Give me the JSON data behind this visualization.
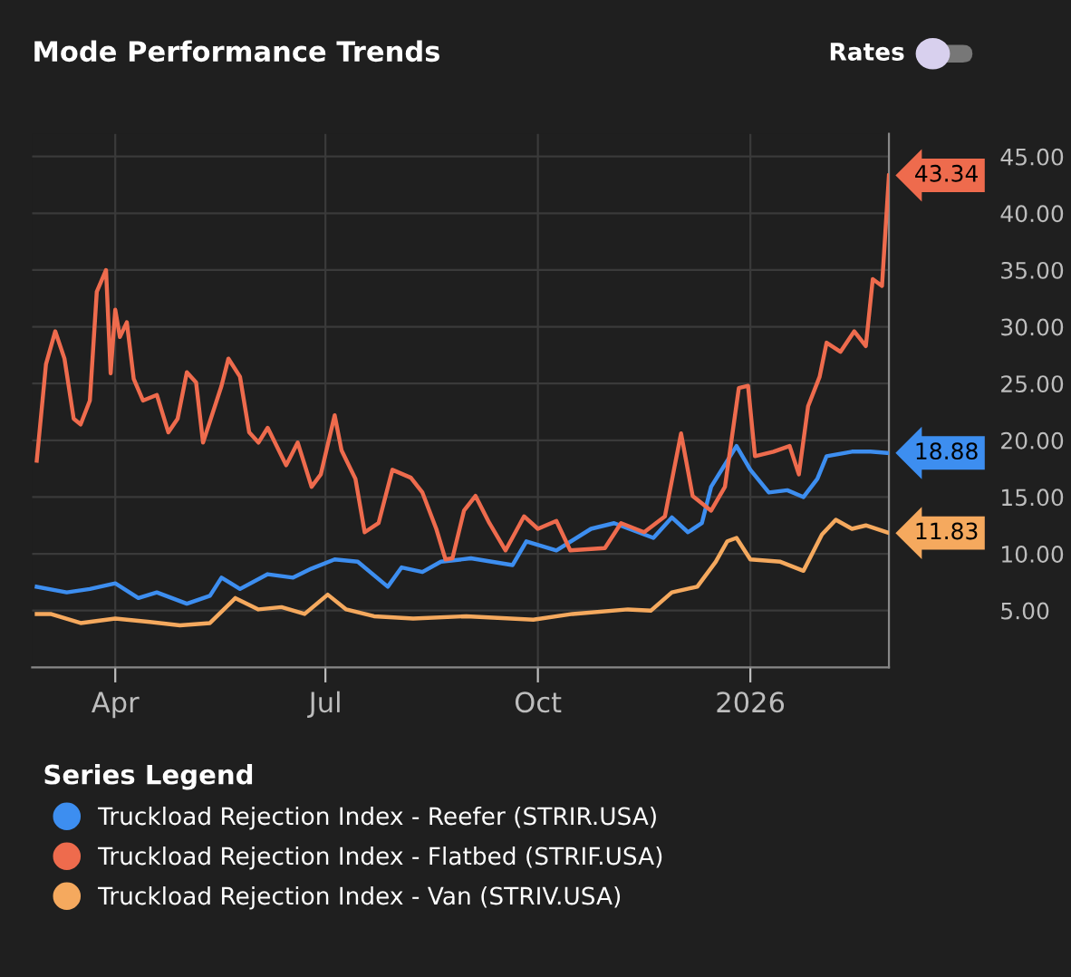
{
  "chart_data": {
    "type": "line",
    "title": "Mode Performance Trends",
    "legend_title": "Series Legend",
    "xlim": [
      "2025-02-24",
      "2026-03-02"
    ],
    "ylim": [
      0,
      47
    ],
    "xticks": [
      {
        "value": "2025-04-01",
        "label": "Apr"
      },
      {
        "value": "2025-07-01",
        "label": "Jul"
      },
      {
        "value": "2025-10-01",
        "label": "Oct"
      },
      {
        "value": "2026-01-01",
        "label": "2026"
      }
    ],
    "yticks": [
      {
        "value": 5,
        "label": "5.00"
      },
      {
        "value": 10,
        "label": "10.00"
      },
      {
        "value": 15,
        "label": "15.00"
      },
      {
        "value": 20,
        "label": "20.00"
      },
      {
        "value": 25,
        "label": "25.00"
      },
      {
        "value": 30,
        "label": "30.00"
      },
      {
        "value": 35,
        "label": "35.00"
      },
      {
        "value": 40,
        "label": "40.00"
      },
      {
        "value": 45,
        "label": "45.00"
      }
    ],
    "grid": true,
    "legend": "bottom",
    "marker": "none",
    "line_style": "solid",
    "series": [
      {
        "name": "Truckload Rejection Index - Reefer (STRIR.USA)",
        "color": "#3d8ef0",
        "x": [
          "2025-02-26",
          "2025-03-11",
          "2025-03-21",
          "2025-04-01",
          "2025-04-11",
          "2025-04-19",
          "2025-05-02",
          "2025-05-12",
          "2025-05-17",
          "2025-05-25",
          "2025-06-06",
          "2025-06-17",
          "2025-06-25",
          "2025-07-05",
          "2025-07-15",
          "2025-07-28",
          "2025-08-03",
          "2025-08-12",
          "2025-08-20",
          "2025-09-02",
          "2025-09-20",
          "2025-09-26",
          "2025-10-09",
          "2025-10-24",
          "2025-11-03",
          "2025-11-20",
          "2025-11-28",
          "2025-12-05",
          "2025-12-11",
          "2025-12-15",
          "2025-12-26",
          "2026-01-01",
          "2026-01-09",
          "2026-01-17",
          "2026-01-24",
          "2026-01-30",
          "2026-02-03",
          "2026-02-14",
          "2026-02-22",
          "2026-03-02"
        ],
        "values": [
          7.1,
          6.6,
          6.9,
          7.4,
          6.1,
          6.6,
          5.6,
          6.3,
          7.9,
          6.9,
          8.2,
          7.9,
          8.7,
          9.5,
          9.3,
          7.1,
          8.8,
          8.4,
          9.3,
          9.6,
          9.0,
          11.1,
          10.3,
          12.2,
          12.7,
          11.4,
          13.2,
          11.9,
          12.7,
          15.9,
          19.5,
          17.4,
          15.4,
          15.6,
          15.0,
          16.6,
          18.6,
          19.0,
          19.0,
          18.88
        ]
      },
      {
        "name": "Truckload Rejection Index - Flatbed (STRIF.USA)",
        "color": "#ee6b4d",
        "x": [
          "2025-02-26",
          "2025-03-02",
          "2025-03-06",
          "2025-03-10",
          "2025-03-14",
          "2025-03-17",
          "2025-03-21",
          "2025-03-24",
          "2025-03-28",
          "2025-03-30",
          "2025-04-01",
          "2025-04-03",
          "2025-04-06",
          "2025-04-09",
          "2025-04-13",
          "2025-04-19",
          "2025-04-24",
          "2025-04-28",
          "2025-05-02",
          "2025-05-06",
          "2025-05-09",
          "2025-05-17",
          "2025-05-20",
          "2025-05-25",
          "2025-05-29",
          "2025-06-02",
          "2025-06-06",
          "2025-06-14",
          "2025-06-19",
          "2025-06-25",
          "2025-06-29",
          "2025-07-05",
          "2025-07-08",
          "2025-07-14",
          "2025-07-18",
          "2025-07-24",
          "2025-07-30",
          "2025-08-07",
          "2025-08-12",
          "2025-08-18",
          "2025-08-22",
          "2025-08-25",
          "2025-08-30",
          "2025-09-04",
          "2025-09-10",
          "2025-09-17",
          "2025-09-25",
          "2025-10-01",
          "2025-10-09",
          "2025-10-15",
          "2025-10-30",
          "2025-11-06",
          "2025-11-16",
          "2025-11-25",
          "2025-11-29",
          "2025-12-02",
          "2025-12-07",
          "2025-12-15",
          "2025-12-21",
          "2025-12-27",
          "2025-12-31",
          "2026-01-03",
          "2026-01-11",
          "2026-01-18",
          "2026-01-22",
          "2026-01-26",
          "2026-01-31",
          "2026-02-03",
          "2026-02-09",
          "2026-02-15",
          "2026-02-20",
          "2026-02-23",
          "2026-02-27",
          "2026-03-02"
        ],
        "values": [
          18.2,
          26.7,
          29.6,
          27.2,
          21.9,
          21.4,
          23.5,
          33.1,
          35.0,
          25.9,
          31.5,
          29.1,
          30.4,
          25.4,
          23.5,
          24.0,
          20.7,
          21.9,
          26.0,
          25.1,
          19.8,
          24.8,
          27.2,
          25.6,
          20.7,
          19.8,
          21.1,
          17.8,
          19.8,
          15.9,
          17.0,
          22.2,
          19.1,
          16.6,
          11.9,
          12.7,
          17.4,
          16.7,
          15.4,
          12.2,
          9.5,
          9.6,
          13.8,
          15.1,
          12.7,
          10.3,
          13.3,
          12.2,
          12.9,
          10.3,
          10.5,
          12.7,
          11.9,
          13.3,
          17.5,
          20.6,
          15.1,
          13.8,
          15.9,
          24.6,
          24.8,
          18.6,
          19.0,
          19.5,
          17.0,
          23.0,
          25.6,
          28.6,
          27.8,
          29.6,
          28.3,
          34.2,
          33.6,
          43.34
        ]
      },
      {
        "name": "Truckload Rejection Index - Van (STRIV.USA)",
        "color": "#f5a95e",
        "x": [
          "2025-02-26",
          "2025-03-04",
          "2025-03-17",
          "2025-04-01",
          "2025-04-16",
          "2025-04-29",
          "2025-05-12",
          "2025-05-23",
          "2025-06-02",
          "2025-06-12",
          "2025-06-22",
          "2025-07-02",
          "2025-07-10",
          "2025-07-22",
          "2025-08-08",
          "2025-08-31",
          "2025-09-29",
          "2025-10-16",
          "2025-11-09",
          "2025-11-19",
          "2025-11-28",
          "2025-12-09",
          "2025-12-17",
          "2025-12-22",
          "2025-12-26",
          "2026-01-01",
          "2026-01-14",
          "2026-01-24",
          "2026-02-01",
          "2026-02-07",
          "2026-02-14",
          "2026-02-20",
          "2026-03-02"
        ],
        "values": [
          4.7,
          4.7,
          3.9,
          4.3,
          4.0,
          3.7,
          3.9,
          6.1,
          5.1,
          5.3,
          4.7,
          6.4,
          5.1,
          4.5,
          4.3,
          4.5,
          4.2,
          4.7,
          5.1,
          5.0,
          6.6,
          7.1,
          9.3,
          11.1,
          11.4,
          9.5,
          9.3,
          8.5,
          11.7,
          13.0,
          12.2,
          12.5,
          11.83
        ]
      }
    ],
    "annotations": [
      "Rates",
      {
        "text": "43.34",
        "x": "2026-03-02",
        "y": 43.34
      },
      {
        "text": "18.88",
        "x": "2026-03-02",
        "y": 18.88
      },
      {
        "text": "11.83",
        "x": "2026-03-02",
        "y": 11.83
      }
    ]
  }
}
